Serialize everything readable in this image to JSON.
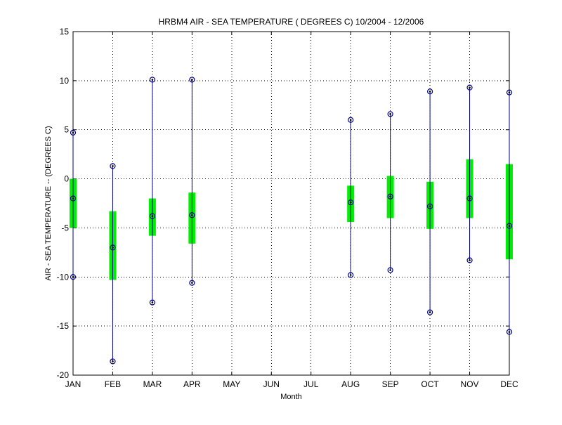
{
  "chart_data": {
    "type": "boxplot",
    "title": "HRBM4  AIR - SEA TEMPERATURE ( DEGREES C) 10/2004 - 12/2006",
    "xlabel": "Month",
    "ylabel": "AIR - SEA TEMPERATURE -- (DEGREES C)",
    "ylim": [
      -20,
      15
    ],
    "yticks": [
      15,
      10,
      5,
      0,
      -5,
      -10,
      -15,
      -20
    ],
    "categories": [
      "JAN",
      "FEB",
      "MAR",
      "APR",
      "MAY",
      "JUN",
      "JUL",
      "AUG",
      "SEP",
      "OCT",
      "NOV",
      "DEC"
    ],
    "grid": true,
    "colors": {
      "whisker": "#00008b",
      "box": "#00ee00",
      "marker": "#000000",
      "axis": "#000000",
      "grid": "#000000"
    },
    "series": [
      {
        "stats": [
          {
            "category": "JAN",
            "min": -10.0,
            "q1": -5.0,
            "median": -2.0,
            "q3": 0.0,
            "max": 4.7
          },
          {
            "category": "FEB",
            "min": -18.6,
            "q1": -10.3,
            "median": -7.0,
            "q3": -3.3,
            "max": 1.3
          },
          {
            "category": "MAR",
            "min": -12.6,
            "q1": -5.8,
            "median": -3.8,
            "q3": -2.0,
            "max": 10.1
          },
          {
            "category": "APR",
            "min": -10.6,
            "q1": -6.6,
            "median": -3.7,
            "q3": -1.4,
            "max": 10.1
          },
          {
            "category": "MAY",
            "min": null,
            "q1": null,
            "median": null,
            "q3": null,
            "max": null
          },
          {
            "category": "JUN",
            "min": null,
            "q1": null,
            "median": null,
            "q3": null,
            "max": null
          },
          {
            "category": "JUL",
            "min": null,
            "q1": null,
            "median": null,
            "q3": null,
            "max": null
          },
          {
            "category": "AUG",
            "min": -9.8,
            "q1": -4.4,
            "median": -2.4,
            "q3": -0.7,
            "max": 6.0
          },
          {
            "category": "SEP",
            "min": -9.3,
            "q1": -4.0,
            "median": -1.8,
            "q3": 0.3,
            "max": 6.6
          },
          {
            "category": "OCT",
            "min": -13.6,
            "q1": -5.1,
            "median": -2.8,
            "q3": -0.3,
            "max": 8.9
          },
          {
            "category": "NOV",
            "min": -8.3,
            "q1": -4.0,
            "median": -2.0,
            "q3": 2.0,
            "max": 9.3
          },
          {
            "category": "DEC",
            "min": -15.6,
            "q1": -8.2,
            "median": -4.8,
            "q3": 1.5,
            "max": 8.8
          }
        ]
      }
    ]
  }
}
